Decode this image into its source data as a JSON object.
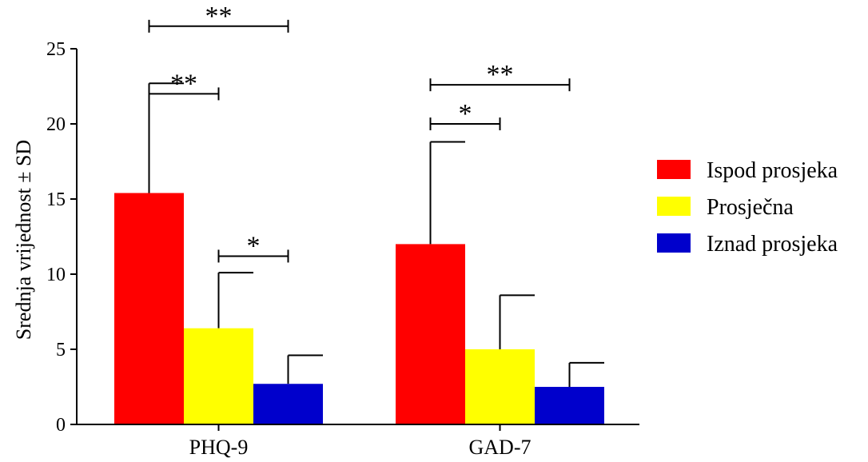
{
  "chart_data": {
    "type": "bar",
    "title": "",
    "xlabel": "",
    "ylabel": "Srednja vrijednost ± SD",
    "ylim": [
      0,
      25
    ],
    "yticks": [
      0,
      5,
      10,
      15,
      20,
      25
    ],
    "categories": [
      "PHQ-9",
      "GAD-7"
    ],
    "series": [
      {
        "name": "Ispod prosjeka",
        "color": "#ff0000",
        "values": [
          15.4,
          12.0
        ],
        "sd": [
          7.3,
          6.8
        ]
      },
      {
        "name": "Prosječna",
        "color": "#ffff00",
        "values": [
          6.4,
          5.0
        ],
        "sd": [
          3.7,
          3.6
        ]
      },
      {
        "name": "Iznad prosjeka",
        "color": "#0000cc",
        "values": [
          2.7,
          2.5
        ],
        "sd": [
          1.9,
          1.6
        ]
      }
    ],
    "legend_position": "right",
    "significance": [
      {
        "category": 0,
        "from": 0,
        "to": 1,
        "label": "**",
        "level": 22.0
      },
      {
        "category": 0,
        "from": 0,
        "to": 2,
        "label": "**",
        "level": 26.5
      },
      {
        "category": 0,
        "from": 1,
        "to": 2,
        "label": "*",
        "level": 11.2
      },
      {
        "category": 1,
        "from": 0,
        "to": 1,
        "label": "*",
        "level": 20.0
      },
      {
        "category": 1,
        "from": 0,
        "to": 2,
        "label": "**",
        "level": 22.6
      }
    ]
  }
}
